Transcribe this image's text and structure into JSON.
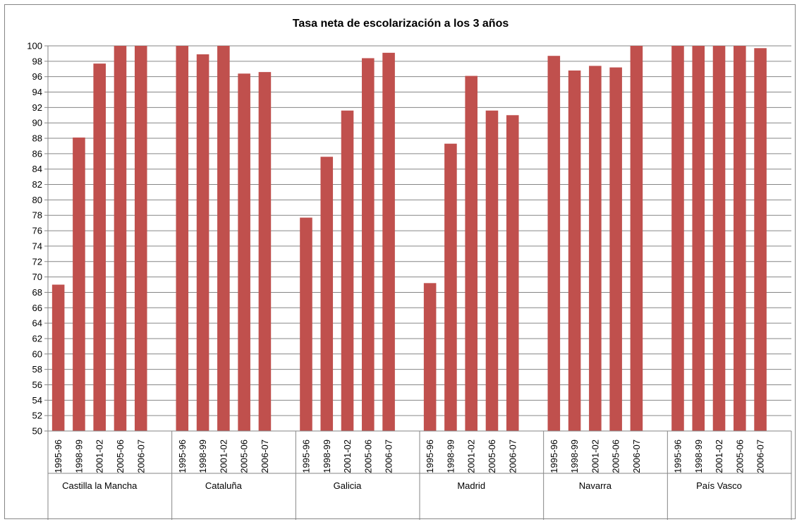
{
  "chart_data": {
    "type": "bar",
    "title": "Tasa neta de escolarización a los 3 años",
    "xlabel": "",
    "ylabel": "",
    "ylim": [
      50,
      100
    ],
    "ytick_step": 2,
    "grid": true,
    "legend": "none",
    "bar_color": "#c0504d",
    "gridline_color": "#868686",
    "groups": [
      {
        "name": "Castilla la Mancha",
        "categories": [
          "1995-96",
          "1998-99",
          "2001-02",
          "2005-06",
          "2006-07"
        ],
        "values": [
          69.0,
          88.1,
          97.7,
          100,
          100
        ]
      },
      {
        "name": "Cataluña",
        "categories": [
          "1995-96",
          "1998-99",
          "2001-02",
          "2005-06",
          "2006-07"
        ],
        "values": [
          100,
          98.9,
          100,
          96.4,
          96.6
        ]
      },
      {
        "name": "Galicia",
        "categories": [
          "1995-96",
          "1998-99",
          "2001-02",
          "2005-06",
          "2006-07"
        ],
        "values": [
          77.7,
          85.6,
          91.6,
          98.4,
          99.1
        ]
      },
      {
        "name": "Madrid",
        "categories": [
          "1995-96",
          "1998-99",
          "2001-02",
          "2005-06",
          "2006-07"
        ],
        "values": [
          69.2,
          87.3,
          96.1,
          91.6,
          91.0
        ]
      },
      {
        "name": "Navarra",
        "categories": [
          "1995-96",
          "1998-99",
          "2001-02",
          "2005-06",
          "2006-07"
        ],
        "values": [
          98.7,
          96.8,
          97.4,
          97.2,
          100
        ]
      },
      {
        "name": "País Vasco",
        "categories": [
          "1995-96",
          "1998-99",
          "2001-02",
          "2005-06",
          "2006-07"
        ],
        "values": [
          100,
          100,
          100,
          100,
          99.7
        ]
      }
    ]
  }
}
